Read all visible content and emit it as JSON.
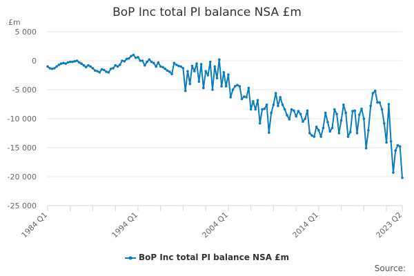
{
  "chart_data": {
    "type": "line",
    "title": "BoP Inc total PI balance NSA £m",
    "ylabel": "£m",
    "xlabel": "",
    "ylim": [
      -25000,
      5000
    ],
    "yticks": [
      5000,
      0,
      -5000,
      -10000,
      -15000,
      -20000,
      -25000
    ],
    "ytick_labels": [
      "5 000",
      "0",
      "-5 000",
      "-10 000",
      "-15 000",
      "-20 000",
      "-25 000"
    ],
    "x_start": "1984 Q1",
    "x_end": "2023 Q2",
    "xtick_labels": [
      {
        "label": "1984 Q1",
        "index": 0
      },
      {
        "label": "1994 Q1",
        "index": 40
      },
      {
        "label": "2004 Q1",
        "index": 80
      },
      {
        "label": "2014 Q1",
        "index": 120
      },
      {
        "label": "2023 Q2",
        "index": 157
      }
    ],
    "grid": true,
    "legend_position": "bottom",
    "series": [
      {
        "name": "BoP Inc total PI balance NSA £m",
        "color": "#0a7bc1",
        "values": [
          -1000,
          -1300,
          -1400,
          -1300,
          -1000,
          -700,
          -500,
          -400,
          -500,
          -300,
          -200,
          -200,
          -100,
          0,
          -300,
          -500,
          -800,
          -1100,
          -800,
          -1000,
          -1300,
          -1700,
          -1800,
          -2000,
          -1500,
          -1600,
          -1900,
          -2000,
          -1400,
          -1300,
          -800,
          -1000,
          -700,
          0,
          -100,
          300,
          400,
          800,
          1000,
          500,
          600,
          0,
          0,
          -800,
          -200,
          200,
          -200,
          -400,
          -1000,
          -300,
          -1000,
          -1100,
          -1400,
          -1700,
          -1900,
          -2300,
          -400,
          -700,
          -900,
          -1000,
          -1300,
          -5200,
          -1800,
          -4000,
          -900,
          -1800,
          -500,
          -3600,
          -600,
          -4700,
          -1800,
          -2500,
          -200,
          -5000,
          -1000,
          -3000,
          200,
          -4400,
          -2000,
          -4400,
          -2400,
          -6300,
          -5000,
          -4400,
          -4200,
          -4400,
          -6600,
          -6200,
          -6300,
          -4700,
          -8400,
          -7000,
          -8400,
          -6800,
          -10800,
          -8400,
          -8300,
          -7600,
          -12400,
          -9000,
          -7600,
          -5600,
          -7800,
          -6300,
          -7600,
          -8400,
          -9400,
          -10100,
          -8400,
          -8600,
          -9600,
          -8700,
          -9200,
          -10500,
          -10000,
          -8600,
          -12500,
          -12900,
          -13100,
          -11400,
          -12000,
          -13100,
          -11600,
          -9000,
          -10600,
          -12200,
          -11600,
          -8400,
          -9200,
          -12500,
          -10300,
          -7600,
          -9000,
          -13100,
          -12300,
          -8700,
          -8600,
          -12500,
          -9300,
          -8300,
          -10000,
          -15100,
          -12000,
          -7800,
          -5600,
          -5200,
          -7200,
          -7200,
          -8400,
          -10800,
          -14100,
          -7500,
          -13900,
          -19300,
          -15500,
          -14600,
          -14800,
          -20200
        ]
      }
    ]
  },
  "source_label": "Source:"
}
